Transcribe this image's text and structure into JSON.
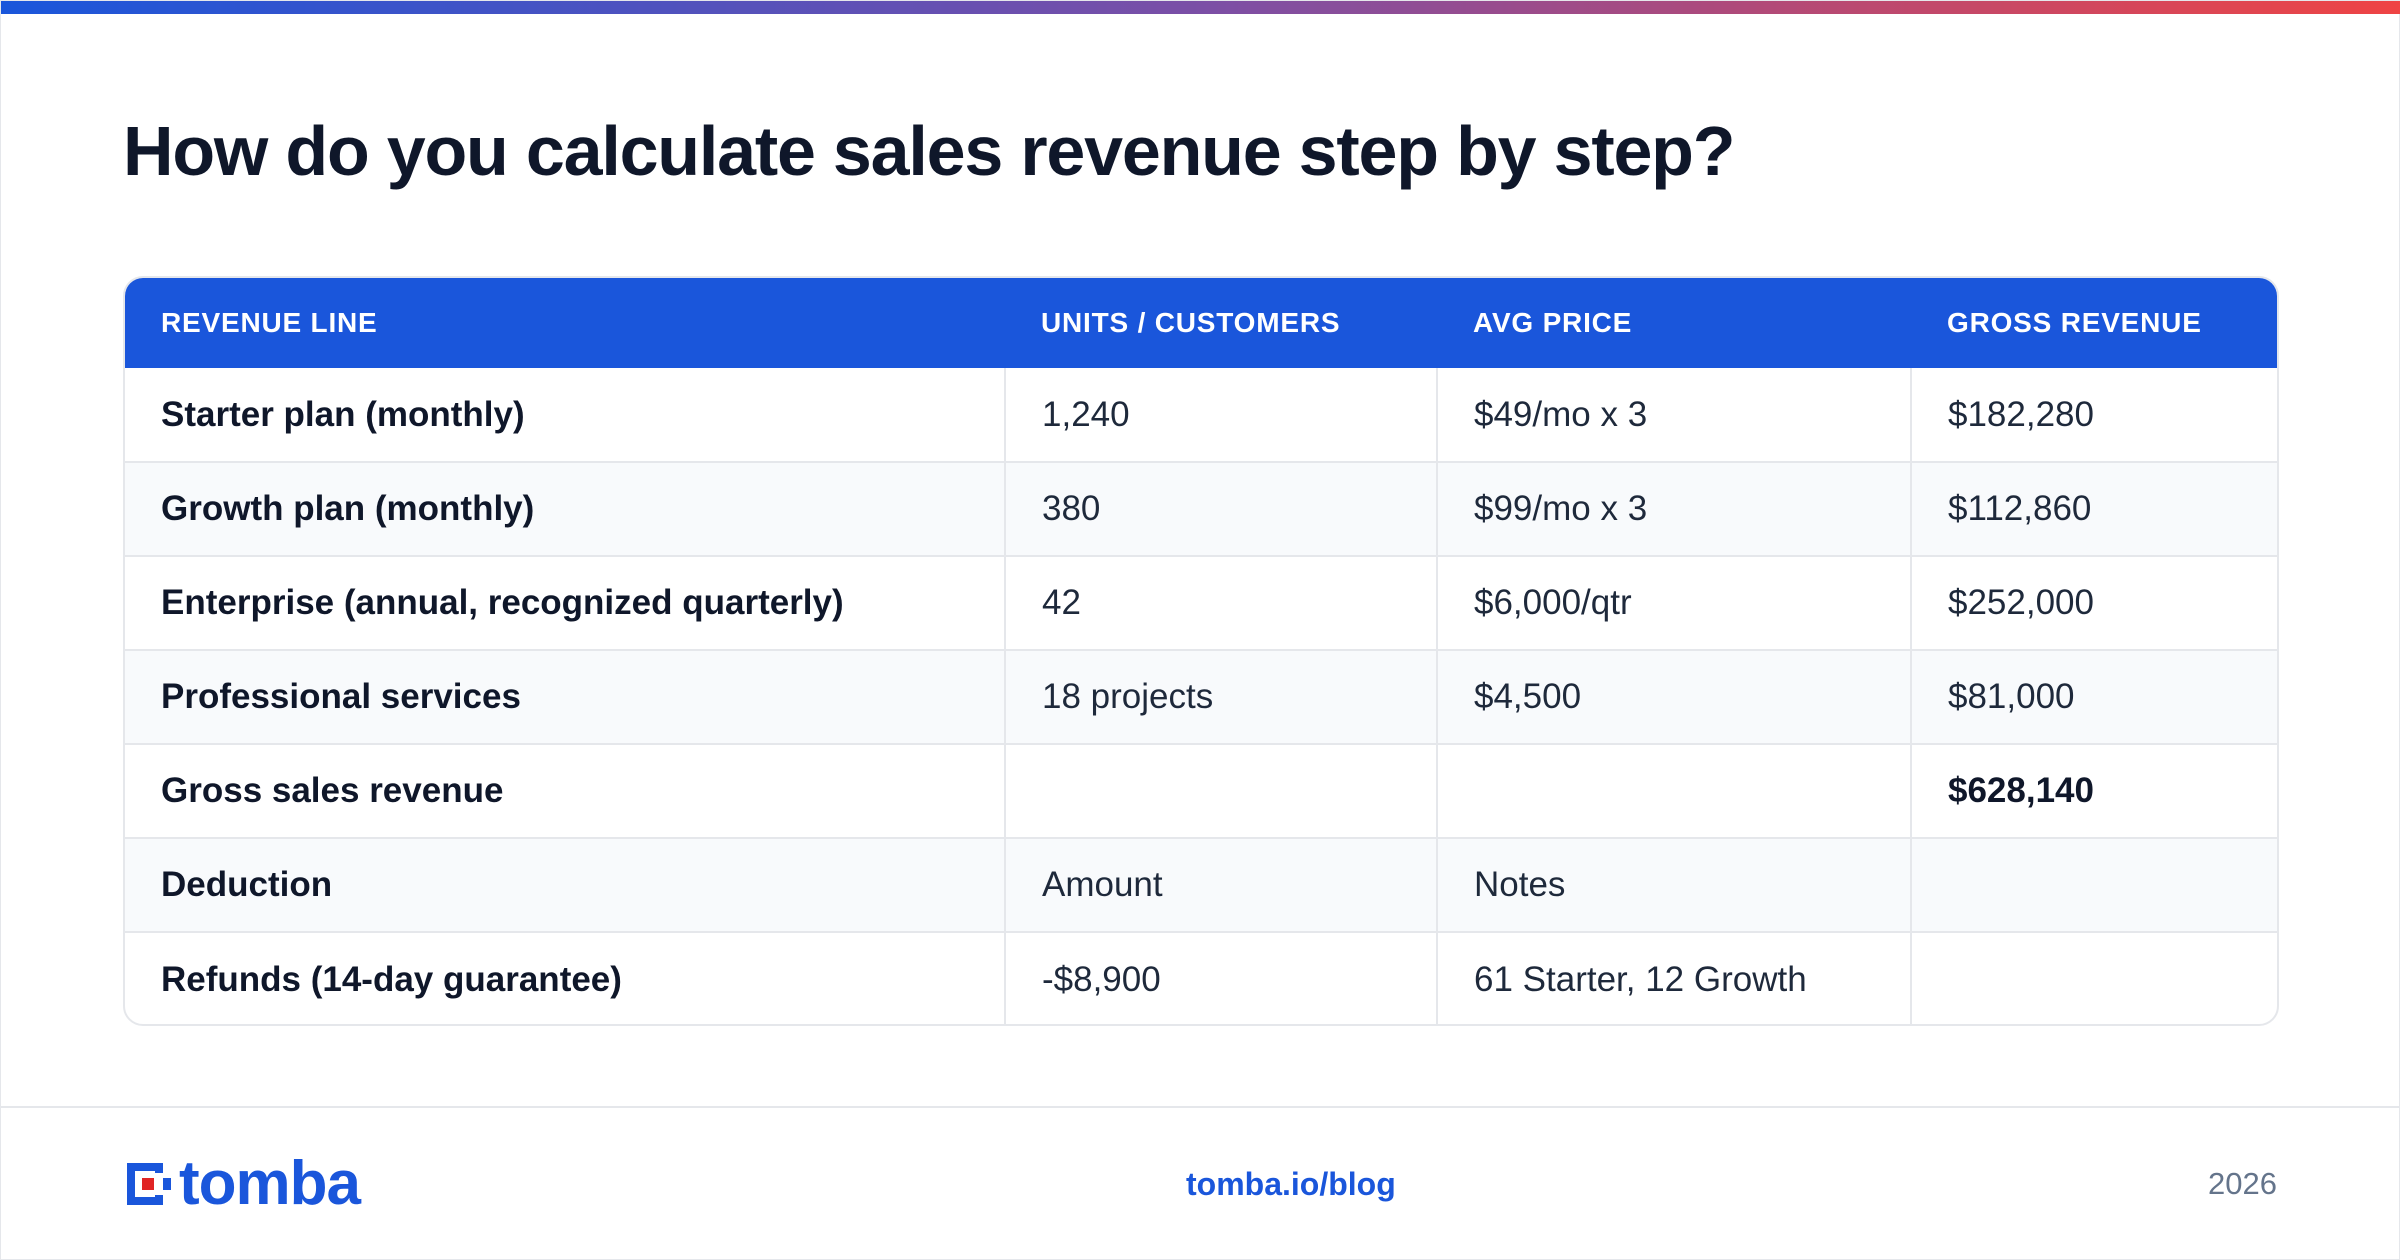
{
  "title": "How do you calculate sales revenue step by step?",
  "table": {
    "headers": [
      "REVENUE LINE",
      "UNITS / CUSTOMERS",
      "AVG PRICE",
      "GROSS REVENUE"
    ],
    "rows": [
      [
        "Starter plan (monthly)",
        "1,240",
        "$49/mo x 3",
        "$182,280"
      ],
      [
        "Growth plan (monthly)",
        "380",
        "$99/mo x 3",
        "$112,860"
      ],
      [
        "Enterprise (annual, recognized quarterly)",
        "42",
        "$6,000/qtr",
        "$252,000"
      ],
      [
        "Professional services",
        "18 projects",
        "$4,500",
        "$81,000"
      ],
      [
        "Gross sales revenue",
        "",
        "",
        "$628,140"
      ],
      [
        "Deduction",
        "Amount",
        "Notes",
        ""
      ],
      [
        "Refunds (14-day guarantee)",
        "-$8,900",
        "61 Starter, 12 Growth",
        ""
      ]
    ]
  },
  "footer": {
    "brand": "tomba",
    "link": "tomba.io/blog",
    "year": "2026"
  },
  "colors": {
    "accent": "#1a56db",
    "gradient_end": "#ef4444",
    "logo_red": "#e02424"
  }
}
